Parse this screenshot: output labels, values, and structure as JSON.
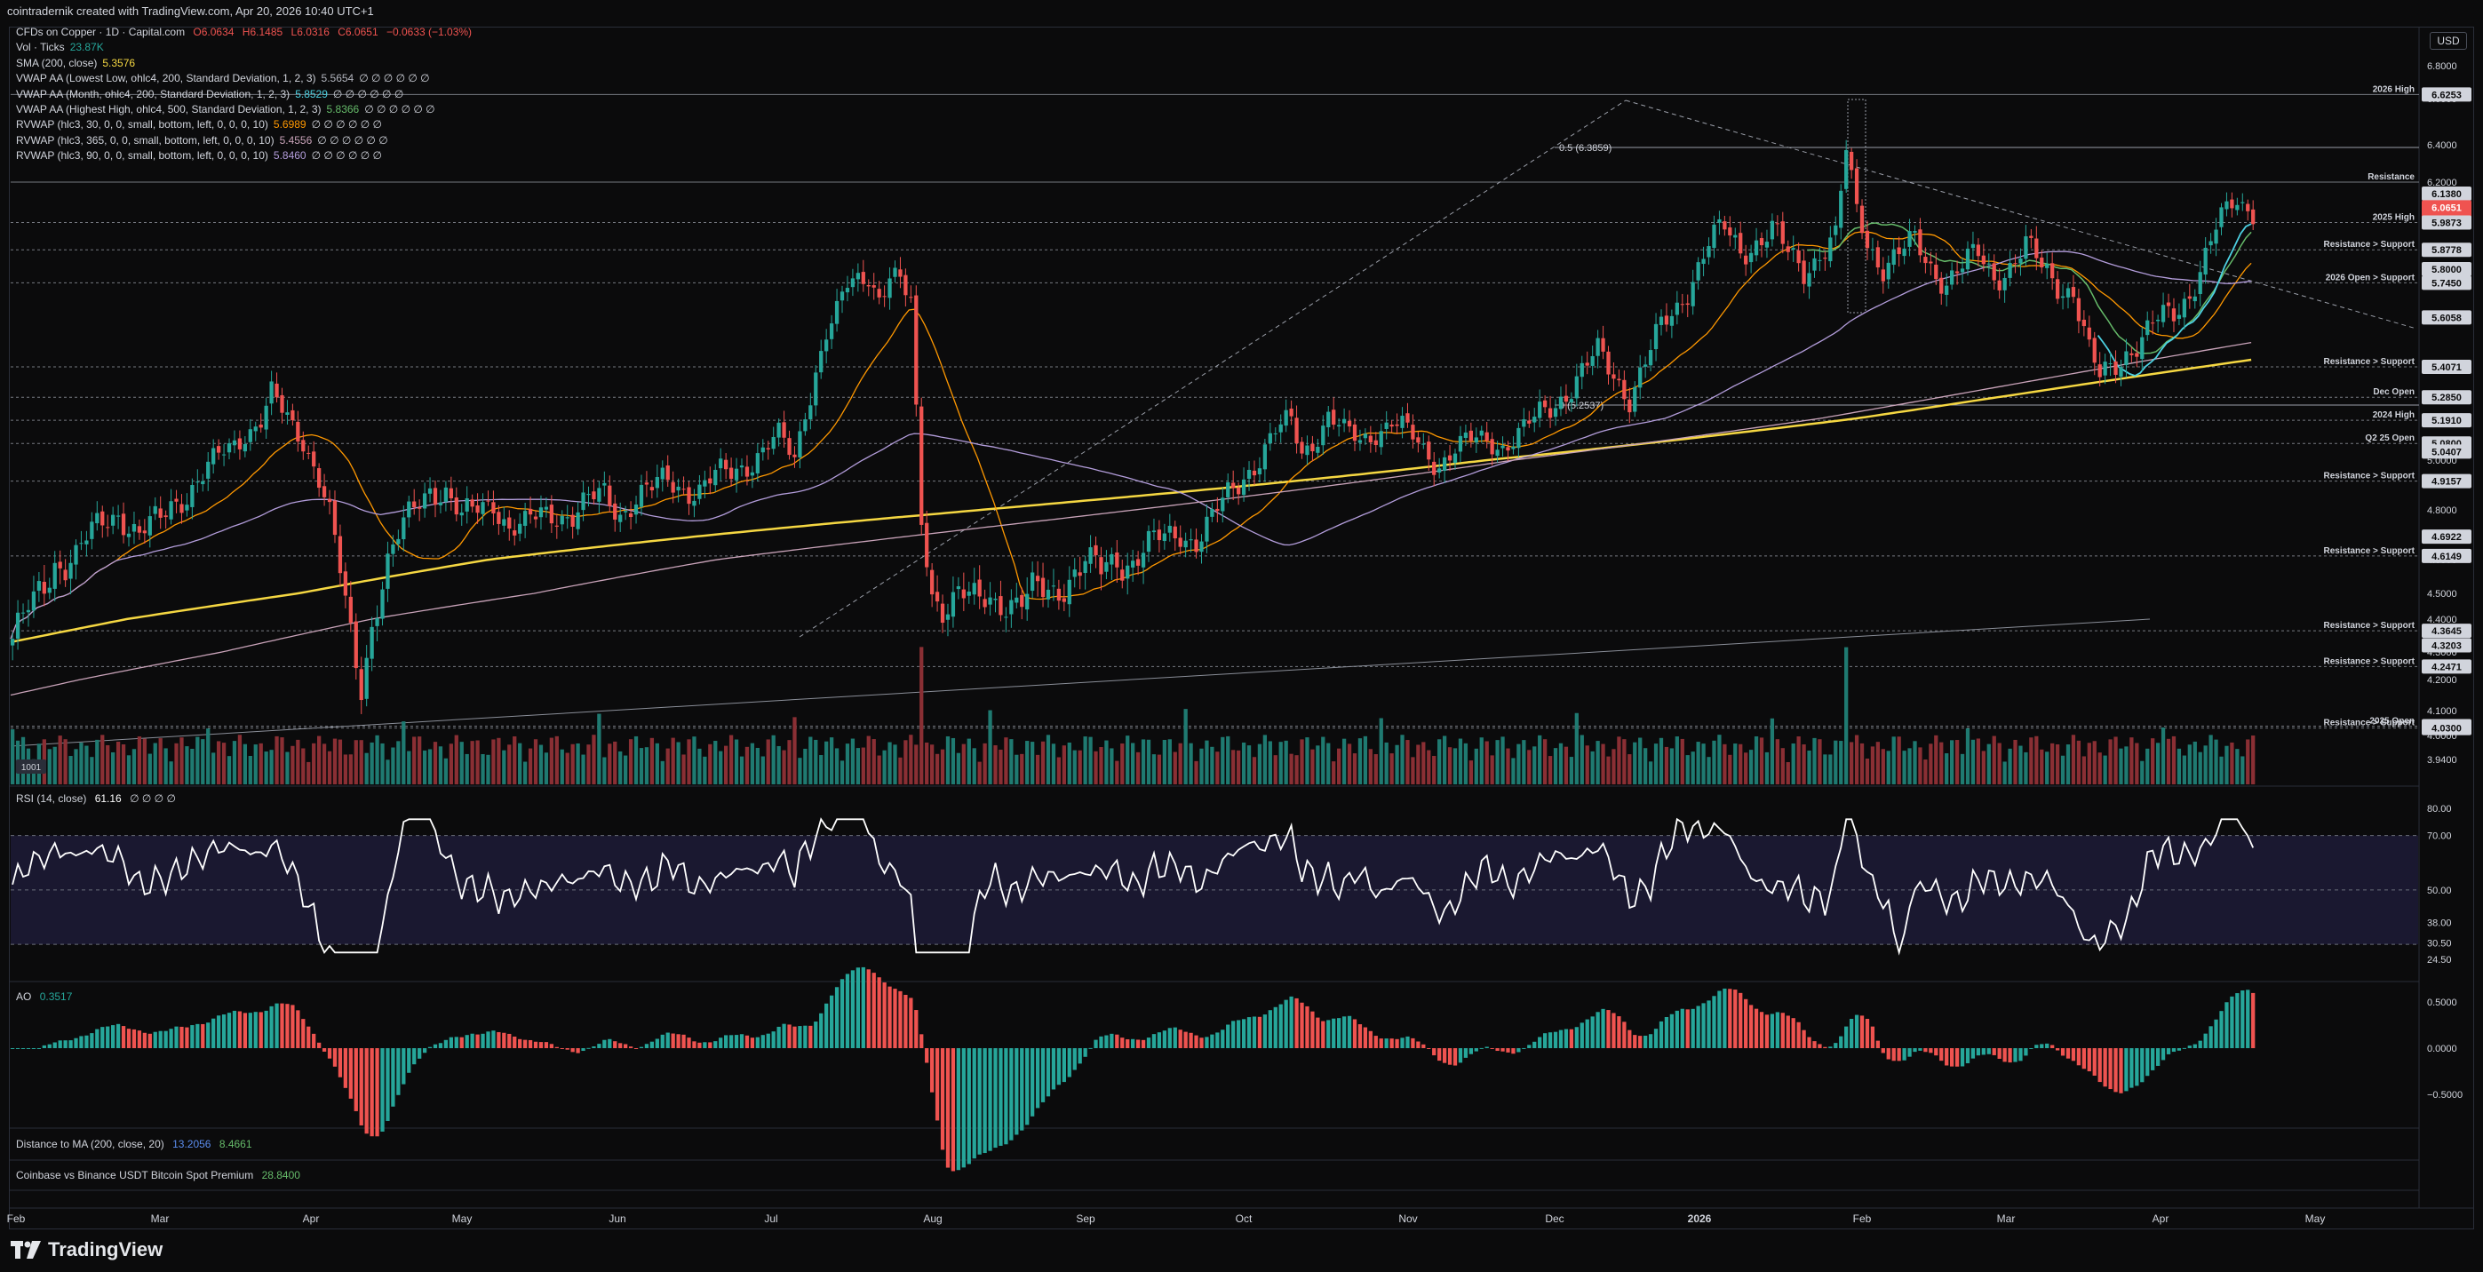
{
  "header": {
    "attribution": "cointradernik created with TradingView.com, Apr 20, 2026 10:40 UTC+1"
  },
  "symbol_line": {
    "symbol": "CFDs on Copper · 1D · Capital.com",
    "o": "O6.0634",
    "h": "H6.1485",
    "l": "L6.0316",
    "c": "C6.0651",
    "chg": "−0.0633 (−1.03%)"
  },
  "legend": [
    {
      "label": "Vol · Ticks",
      "value": "23.87K",
      "color": "#26a69a"
    },
    {
      "label": "SMA (200, close)",
      "value": "5.3576",
      "color": "#f5d742"
    },
    {
      "label": "VWAP AA (Lowest Low, ohlc4, 200, Standard Deviation, 1, 2, 3)",
      "value": "5.5654",
      "extra": "∅ ∅ ∅ ∅ ∅ ∅",
      "color": "#b2b5be"
    },
    {
      "label": "VWAP AA (Month, ohlc4, 200, Standard Deviation, 1, 2, 3)",
      "value": "5.8529",
      "extra": "∅ ∅ ∅ ∅ ∅ ∅",
      "color": "#4dd0e1"
    },
    {
      "label": "VWAP AA (Highest High, ohlc4, 500, Standard Deviation, 1, 2, 3)",
      "value": "5.8366",
      "extra": "∅ ∅ ∅ ∅ ∅ ∅",
      "color": "#66bb6a"
    },
    {
      "label": "RVWAP (hlc3, 30, 0, 0, small, bottom, left, 0, 0, 0, 10)",
      "value": "5.6989",
      "extra": "∅ ∅ ∅ ∅ ∅ ∅",
      "color": "#ff9800"
    },
    {
      "label": "RVWAP (hlc3, 365, 0, 0, small, bottom, left, 0, 0, 0, 10)",
      "value": "5.4556",
      "extra": "∅ ∅ ∅ ∅ ∅ ∅",
      "color": "#c9a3b9"
    },
    {
      "label": "RVWAP (hlc3, 90, 0, 0, small, bottom, left, 0, 0, 0, 10)",
      "value": "5.8460",
      "extra": "∅ ∅ ∅ ∅ ∅ ∅",
      "color": "#b39ddb"
    }
  ],
  "currency": "USD",
  "price_scale": [
    "6.8000",
    "6.6000",
    "6.4000",
    "6.2000",
    "6.0000",
    "5.8000",
    "5.6000",
    "5.4000",
    "5.2000",
    "5.0000",
    "4.8000",
    "4.6000",
    "4.5000",
    "4.4000",
    "4.3000",
    "4.2000",
    "4.1000",
    "4.0000",
    "3.9400"
  ],
  "price_badges": [
    {
      "text": "6.6253",
      "price": 6.6253,
      "color": "#d1d4dc"
    },
    {
      "text": "6.1380",
      "price": 6.138,
      "color": "#d1d4dc"
    },
    {
      "text": "6.0651",
      "price": 6.0651,
      "color": "#ef5350",
      "sub": "11:19:08"
    },
    {
      "text": "5.9873",
      "price": 5.9873,
      "color": "#d1d4dc"
    },
    {
      "text": "5.8778",
      "price": 5.8778,
      "color": "#d1d4dc"
    },
    {
      "text": "5.8000",
      "price": 5.8,
      "color": "#d1d4dc"
    },
    {
      "text": "5.7450",
      "price": 5.745,
      "color": "#d1d4dc"
    },
    {
      "text": "5.6058",
      "price": 5.6058,
      "color": "#d1d4dc"
    },
    {
      "text": "5.4071",
      "price": 5.4071,
      "color": "#d1d4dc"
    },
    {
      "text": "5.2850",
      "price": 5.285,
      "color": "#d1d4dc"
    },
    {
      "text": "5.1910",
      "price": 5.191,
      "color": "#d1d4dc"
    },
    {
      "text": "5.0800",
      "price": 5.08,
      "color": "#d1d4dc"
    },
    {
      "text": "5.0407",
      "price": 5.0407,
      "color": "#d1d4dc"
    },
    {
      "text": "4.9157",
      "price": 4.9157,
      "color": "#d1d4dc"
    },
    {
      "text": "4.6922",
      "price": 4.6922,
      "color": "#d1d4dc"
    },
    {
      "text": "4.6149",
      "price": 4.6149,
      "color": "#d1d4dc"
    },
    {
      "text": "4.3645",
      "price": 4.3645,
      "color": "#d1d4dc"
    },
    {
      "text": "4.3203",
      "price": 4.3203,
      "color": "#d1d4dc"
    },
    {
      "text": "4.2471",
      "price": 4.2471,
      "color": "#d1d4dc"
    },
    {
      "text": "4.0373",
      "price": 4.0373,
      "color": "#d1d4dc"
    },
    {
      "text": "4.0300",
      "price": 4.03,
      "color": "#d1d4dc"
    }
  ],
  "levels": [
    {
      "label": "2026 High",
      "price": 6.6253
    },
    {
      "label": "Resistance",
      "price": 6.2
    },
    {
      "label": "2025 High",
      "price": 5.9873
    },
    {
      "label": "Resistance > Support",
      "price": 5.8778
    },
    {
      "label": "2026 Open > Support",
      "price": 5.745
    },
    {
      "label": "Resistance > Support",
      "price": 5.4071
    },
    {
      "label": "Dec Open",
      "price": 5.285
    },
    {
      "label": "2024 High",
      "price": 5.191
    },
    {
      "label": "Q2 25 Open",
      "price": 5.08
    },
    {
      "label": "Resistance > Support",
      "price": 4.9157
    },
    {
      "label": "Resistance > Support",
      "price": 4.6149
    },
    {
      "label": "Resistance > Support",
      "price": 4.3645
    },
    {
      "label": "Resistance > Support",
      "price": 4.2471
    },
    {
      "label": "2025 Open",
      "price": 4.0373
    },
    {
      "label": "Resistance > Support",
      "price": 4.03
    }
  ],
  "fib_labels": [
    {
      "text": "0.5 (6.3859)",
      "price": 6.3859
    },
    {
      "text": "0 (5.2537)",
      "price": 5.2537
    }
  ],
  "volume_badge": "1001",
  "rsi": {
    "label": "RSI (14, close)",
    "value": "61.16",
    "extra": "∅ ∅ ∅ ∅",
    "scale": [
      "80.00",
      "70.00",
      "50.00",
      "38.00",
      "30.50",
      "24.50"
    ]
  },
  "ao": {
    "label": "AO",
    "value": "0.3517",
    "scale": [
      "0.5000",
      "0.0000",
      "−0.5000"
    ]
  },
  "dist_ma": {
    "label": "Distance to MA (200, close, 20)",
    "v1": "13.2056",
    "v2": "8.4661"
  },
  "premium": {
    "label": "Coinbase vs Binance USDT Bitcoin Spot Premium",
    "value": "28.8400"
  },
  "time_axis": [
    "Feb",
    "Mar",
    "Apr",
    "May",
    "Jun",
    "Jul",
    "Aug",
    "Sep",
    "Oct",
    "Nov",
    "Dec",
    "2026",
    "Feb",
    "Mar",
    "Apr",
    "May"
  ],
  "brand": "TradingView",
  "chart_data": {
    "type": "candlestick",
    "title": "CFDs on Copper · 1D · Capital.com",
    "ylim": [
      3.94,
      6.8
    ],
    "months": [
      "Feb",
      "Mar",
      "Apr",
      "May",
      "Jun",
      "Jul",
      "Aug",
      "Sep",
      "Oct",
      "Nov",
      "Dec",
      "2026",
      "Feb",
      "Mar",
      "Apr",
      "May"
    ],
    "close_path": [
      [
        0,
        4.34
      ],
      [
        4,
        4.45
      ],
      [
        8,
        4.6
      ],
      [
        12,
        4.62
      ],
      [
        16,
        4.72
      ],
      [
        20,
        4.8
      ],
      [
        24,
        4.7
      ],
      [
        28,
        4.75
      ],
      [
        30,
        4.82
      ],
      [
        34,
        4.9
      ],
      [
        38,
        4.98
      ],
      [
        41,
        5.05
      ],
      [
        44,
        5.14
      ],
      [
        47,
        5.2
      ],
      [
        49,
        5.28
      ],
      [
        52,
        5.18
      ],
      [
        55,
        5.1
      ],
      [
        58,
        4.95
      ],
      [
        60,
        4.78
      ],
      [
        62,
        4.55
      ],
      [
        64,
        4.33
      ],
      [
        66,
        4.18
      ],
      [
        68,
        4.4
      ],
      [
        70,
        4.55
      ],
      [
        73,
        4.68
      ],
      [
        76,
        4.8
      ],
      [
        79,
        4.9
      ],
      [
        82,
        4.88
      ],
      [
        85,
        4.75
      ],
      [
        88,
        4.8
      ],
      [
        91,
        4.85
      ],
      [
        94,
        4.73
      ],
      [
        97,
        4.72
      ],
      [
        100,
        4.78
      ],
      [
        103,
        4.8
      ],
      [
        106,
        4.78
      ],
      [
        109,
        4.82
      ],
      [
        112,
        4.86
      ],
      [
        115,
        4.8
      ],
      [
        118,
        4.85
      ],
      [
        121,
        4.87
      ],
      [
        124,
        4.92
      ],
      [
        127,
        4.9
      ],
      [
        130,
        4.88
      ],
      [
        133,
        4.92
      ],
      [
        136,
        4.95
      ],
      [
        139,
        5.0
      ],
      [
        142,
        5.05
      ],
      [
        145,
        5.1
      ],
      [
        148,
        5.0
      ],
      [
        150,
        5.25
      ],
      [
        152,
        5.4
      ],
      [
        154,
        5.55
      ],
      [
        156,
        5.6
      ],
      [
        158,
        5.72
      ],
      [
        160,
        5.75
      ],
      [
        162,
        5.8
      ],
      [
        164,
        5.7
      ],
      [
        166,
        5.78
      ],
      [
        168,
        5.72
      ],
      [
        170,
        5.65
      ],
      [
        172,
        4.75
      ],
      [
        174,
        4.52
      ],
      [
        176,
        4.45
      ],
      [
        179,
        4.48
      ],
      [
        182,
        4.46
      ],
      [
        185,
        4.5
      ],
      [
        188,
        4.47
      ],
      [
        191,
        4.45
      ],
      [
        194,
        4.5
      ],
      [
        197,
        4.52
      ],
      [
        200,
        4.55
      ],
      [
        203,
        4.58
      ],
      [
        206,
        4.56
      ],
      [
        209,
        4.62
      ],
      [
        212,
        4.6
      ],
      [
        215,
        4.65
      ],
      [
        218,
        4.68
      ],
      [
        221,
        4.72
      ],
      [
        224,
        4.68
      ],
      [
        227,
        4.75
      ],
      [
        230,
        4.85
      ],
      [
        233,
        4.95
      ],
      [
        236,
        5.02
      ],
      [
        239,
        5.12
      ],
      [
        242,
        5.18
      ],
      [
        244,
        5.05
      ],
      [
        246,
        5.1
      ],
      [
        249,
        5.2
      ],
      [
        252,
        5.12
      ],
      [
        255,
        5.1
      ],
      [
        258,
        5.15
      ],
      [
        261,
        5.18
      ],
      [
        264,
        5.12
      ],
      [
        267,
        5.05
      ],
      [
        270,
        5.0
      ],
      [
        273,
        5.05
      ],
      [
        276,
        5.08
      ],
      [
        279,
        5.1
      ],
      [
        282,
        5.08
      ],
      [
        285,
        5.12
      ],
      [
        288,
        5.18
      ],
      [
        291,
        5.25
      ],
      [
        294,
        5.32
      ],
      [
        297,
        5.38
      ],
      [
        300,
        5.45
      ],
      [
        303,
        5.38
      ],
      [
        306,
        5.3
      ],
      [
        309,
        5.42
      ],
      [
        312,
        5.55
      ],
      [
        315,
        5.65
      ],
      [
        318,
        5.78
      ],
      [
        321,
        5.9
      ],
      [
        324,
        5.95
      ],
      [
        327,
        5.88
      ],
      [
        330,
        5.92
      ],
      [
        333,
        5.95
      ],
      [
        336,
        5.85
      ],
      [
        339,
        5.8
      ],
      [
        342,
        5.88
      ],
      [
        345,
        5.92
      ],
      [
        347,
        6.35
      ],
      [
        349,
        6.05
      ],
      [
        351,
        5.92
      ],
      [
        354,
        5.82
      ],
      [
        357,
        5.85
      ],
      [
        360,
        5.9
      ],
      [
        363,
        5.82
      ],
      [
        366,
        5.76
      ],
      [
        369,
        5.8
      ],
      [
        372,
        5.85
      ],
      [
        375,
        5.78
      ],
      [
        378,
        5.82
      ],
      [
        381,
        5.88
      ],
      [
        384,
        5.8
      ],
      [
        387,
        5.75
      ],
      [
        390,
        5.72
      ],
      [
        393,
        5.45
      ],
      [
        395,
        5.35
      ],
      [
        397,
        5.4
      ],
      [
        400,
        5.48
      ],
      [
        403,
        5.52
      ],
      [
        406,
        5.58
      ],
      [
        409,
        5.62
      ],
      [
        412,
        5.72
      ],
      [
        415,
        5.85
      ],
      [
        418,
        6.0
      ],
      [
        421,
        6.1
      ],
      [
        424,
        6.06
      ]
    ]
  }
}
